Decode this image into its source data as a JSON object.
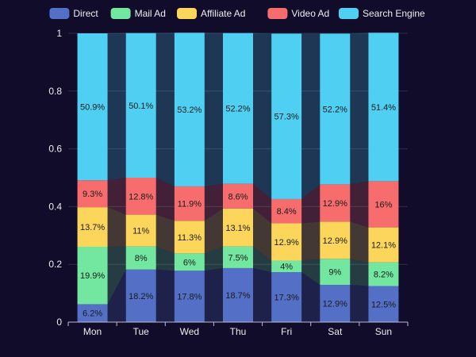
{
  "chart_data": {
    "type": "bar",
    "stacked": true,
    "normalized": true,
    "categories": [
      "Mon",
      "Tue",
      "Wed",
      "Thu",
      "Fri",
      "Sat",
      "Sun"
    ],
    "y_ticks": [
      "0",
      "0.2",
      "0.4",
      "0.6",
      "0.8",
      "1"
    ],
    "ylim": [
      0,
      1
    ],
    "legend_position": "top",
    "series": [
      {
        "name": "Direct",
        "color": "#5470c6",
        "values": [
          0.062,
          0.182,
          0.178,
          0.187,
          0.173,
          0.129,
          0.125
        ],
        "labels": [
          "6.2%",
          "18.2%",
          "17.8%",
          "18.7%",
          "17.3%",
          "12.9%",
          "12.5%"
        ]
      },
      {
        "name": "Mail Ad",
        "color": "#73e6a0",
        "values": [
          0.199,
          0.08,
          0.06,
          0.075,
          0.04,
          0.09,
          0.082
        ],
        "labels": [
          "19.9%",
          "8%",
          "6%",
          "7.5%",
          "4%",
          "9%",
          "8.2%"
        ]
      },
      {
        "name": "Affiliate Ad",
        "color": "#fcd65b",
        "values": [
          0.137,
          0.11,
          0.113,
          0.131,
          0.129,
          0.129,
          0.121
        ],
        "labels": [
          "13.7%",
          "11%",
          "11.3%",
          "13.1%",
          "12.9%",
          "12.9%",
          "12.1%"
        ]
      },
      {
        "name": "Video Ad",
        "color": "#f76d6d",
        "values": [
          0.093,
          0.128,
          0.119,
          0.086,
          0.084,
          0.129,
          0.16
        ],
        "labels": [
          "9.3%",
          "12.8%",
          "11.9%",
          "8.6%",
          "8.4%",
          "12.9%",
          "16%"
        ]
      },
      {
        "name": "Search Engine",
        "color": "#4fd0f2",
        "values": [
          0.509,
          0.501,
          0.532,
          0.522,
          0.573,
          0.522,
          0.514
        ],
        "labels": [
          "50.9%",
          "50.1%",
          "53.2%",
          "52.2%",
          "57.3%",
          "52.2%",
          "51.4%"
        ]
      }
    ]
  }
}
